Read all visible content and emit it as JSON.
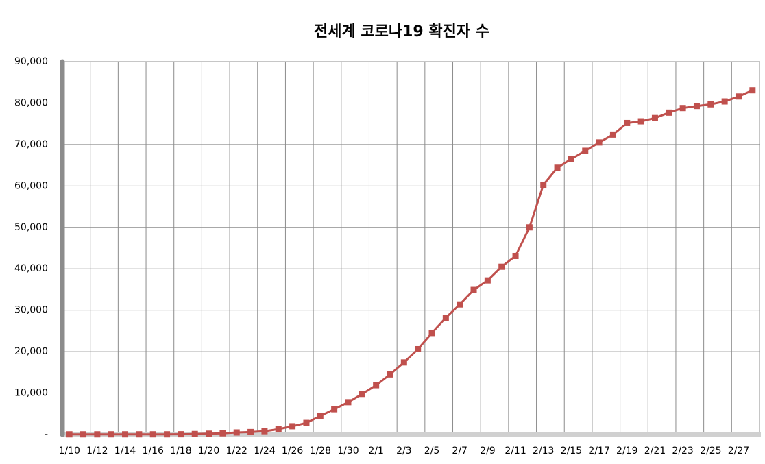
{
  "chart_data": {
    "type": "line",
    "title": "전세계 코로나19 확진자 수",
    "categories": [
      "1/10",
      null,
      "1/12",
      null,
      "1/14",
      null,
      "1/16",
      null,
      "1/18",
      null,
      "1/20",
      null,
      "1/22",
      null,
      "1/24",
      null,
      "1/26",
      null,
      "1/28",
      null,
      "1/30",
      null,
      "2/1",
      null,
      "2/3",
      null,
      "2/5",
      null,
      "2/7",
      null,
      "2/9",
      null,
      "2/11",
      null,
      "2/13",
      null,
      "2/15",
      null,
      "2/17",
      null,
      "2/19",
      null,
      "2/21",
      null,
      "2/23",
      null,
      "2/25",
      null,
      "2/27",
      null
    ],
    "series": [
      {
        "name": "확진자 수",
        "color": "#c0504d",
        "values": [
          41,
          41,
          41,
          45,
          45,
          45,
          45,
          45,
          62,
          121,
          200,
          300,
          500,
          600,
          800,
          1300,
          2000,
          2800,
          4500,
          6100,
          7800,
          9800,
          11900,
          14500,
          17400,
          20600,
          24500,
          28200,
          31400,
          34900,
          37200,
          40500,
          43100,
          50000,
          60300,
          64400,
          66500,
          68500,
          70500,
          72400,
          75200,
          75600,
          76400,
          77700,
          78800,
          79300,
          79700,
          80400,
          81600,
          83100
        ]
      }
    ],
    "ylim": [
      0,
      90000
    ],
    "yticks": [
      {
        "value": 0,
        "label": "-"
      },
      {
        "value": 10000,
        "label": "10,000"
      },
      {
        "value": 20000,
        "label": "20,000"
      },
      {
        "value": 30000,
        "label": "30,000"
      },
      {
        "value": 40000,
        "label": "40,000"
      },
      {
        "value": 50000,
        "label": "50,000"
      },
      {
        "value": 60000,
        "label": "60,000"
      },
      {
        "value": 70000,
        "label": "70,000"
      },
      {
        "value": 80000,
        "label": "80,000"
      },
      {
        "value": 90000,
        "label": "90,000"
      }
    ],
    "grid": true
  }
}
